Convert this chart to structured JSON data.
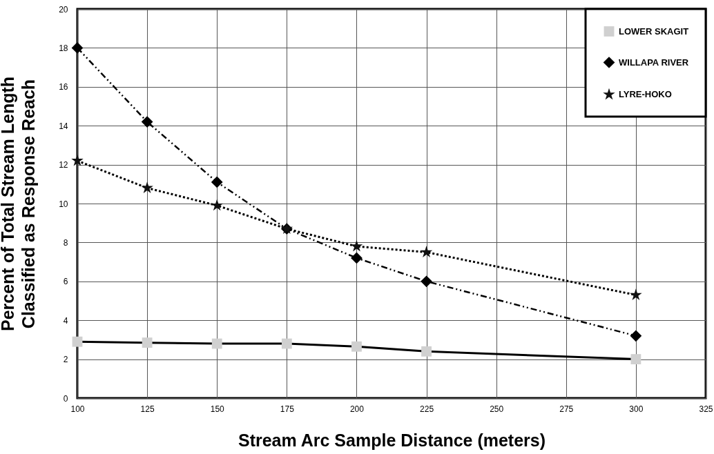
{
  "chart_data": {
    "type": "line",
    "xlabel": "Stream Arc Sample Distance (meters)",
    "ylabel": "Percent of Total Stream Length\nClassified as Response Reach",
    "x": [
      100,
      125,
      150,
      175,
      200,
      225,
      300
    ],
    "xlim": [
      100,
      325
    ],
    "xticks": [
      100,
      125,
      150,
      175,
      200,
      225,
      250,
      275,
      300,
      325
    ],
    "ylim": [
      0,
      20
    ],
    "yticks": [
      0,
      2,
      4,
      6,
      8,
      10,
      12,
      14,
      16,
      18,
      20
    ],
    "grid": true,
    "legend": "top right",
    "series": [
      {
        "name": "LOWER SKAGIT",
        "color": "#d0d0d0",
        "marker": "square",
        "line_style": "solid",
        "values": [
          2.9,
          2.85,
          2.8,
          2.8,
          2.65,
          2.4,
          2.0
        ]
      },
      {
        "name": "WILLAPA RIVER",
        "color": "#000000",
        "marker": "diamond",
        "line_style": "dashed",
        "values": [
          18.0,
          14.2,
          11.1,
          8.7,
          7.2,
          6.0,
          3.2
        ]
      },
      {
        "name": "LYRE-HOKO",
        "color": "#111111",
        "marker": "star",
        "line_style": "dotted",
        "values": [
          12.2,
          10.8,
          9.9,
          8.7,
          7.8,
          7.5,
          5.3
        ]
      }
    ]
  }
}
